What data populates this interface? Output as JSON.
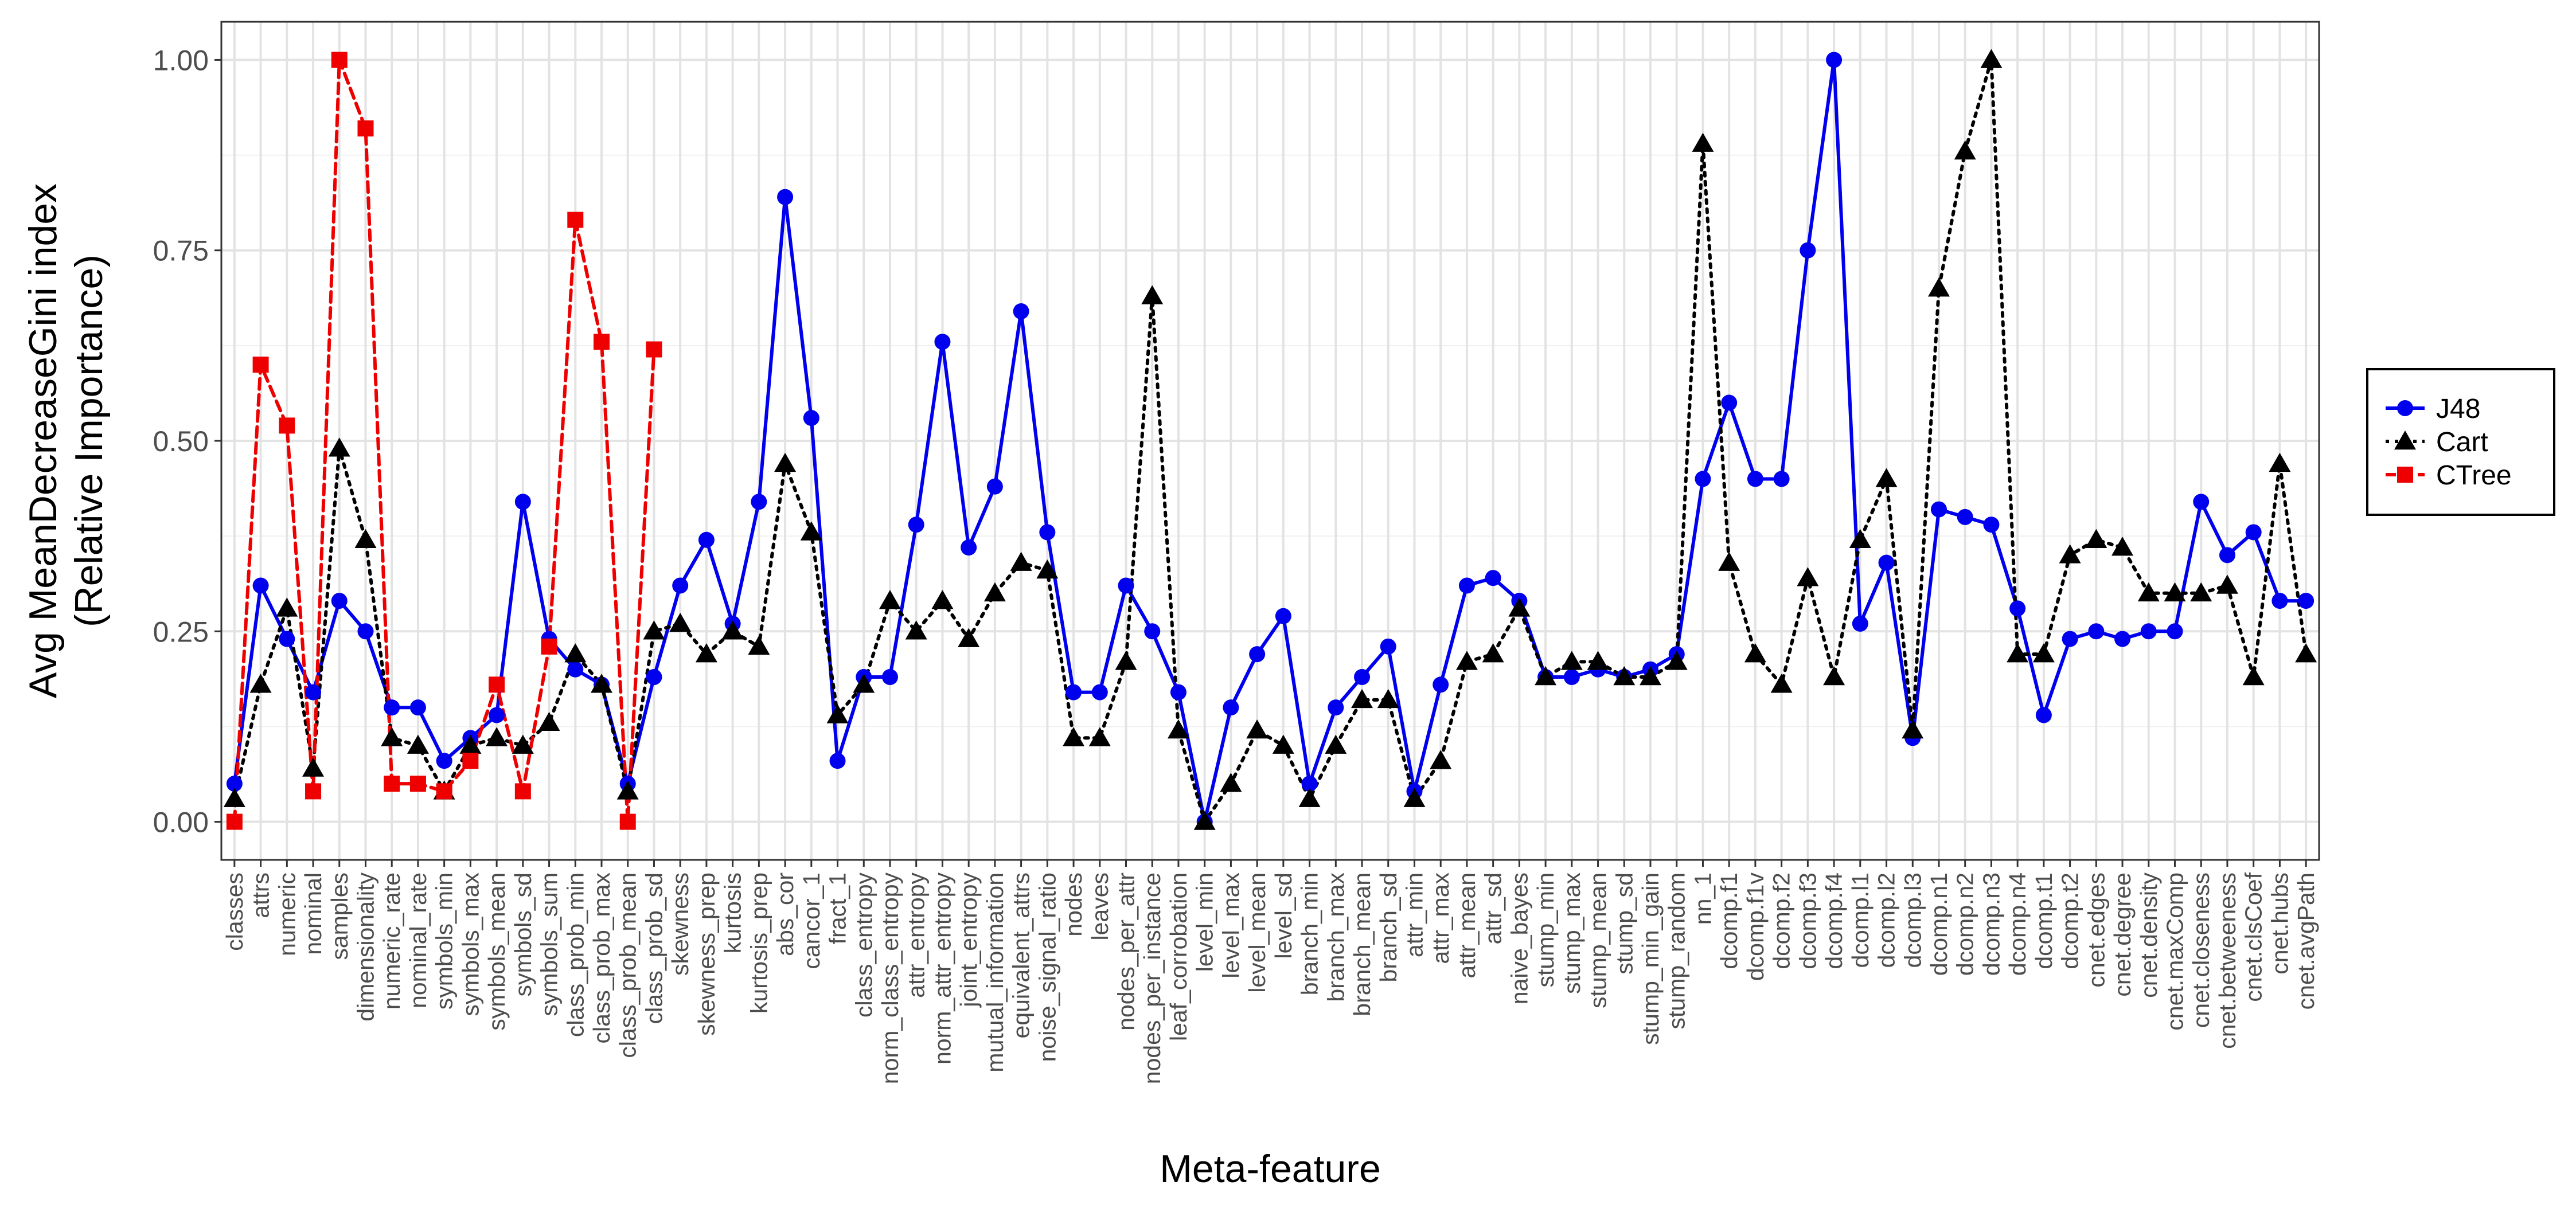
{
  "chart_data": {
    "type": "line",
    "title": "",
    "xlabel": "Meta-feature",
    "ylabel_line1": "Avg MeanDecreaseGini index",
    "ylabel_line2": "(Relative Importance)",
    "ylim": [
      -0.05,
      1.05
    ],
    "yticks": [
      "0.00",
      "0.25",
      "0.50",
      "0.75",
      "1.00"
    ],
    "ytick_values": [
      0,
      0.25,
      0.5,
      0.75,
      1.0
    ],
    "grid": true,
    "legend_position": "right",
    "categories": [
      "classes",
      "attrs",
      "numeric",
      "nominal",
      "samples",
      "dimensionality",
      "numeric_rate",
      "nominal_rate",
      "symbols_min",
      "symbols_max",
      "symbols_mean",
      "symbols_sd",
      "symbols_sum",
      "class_prob_min",
      "class_prob_max",
      "class_prob_mean",
      "class_prob_sd",
      "skewness",
      "skewness_prep",
      "kurtosis",
      "kurtosis_prep",
      "abs_cor",
      "cancor_1",
      "fract_1",
      "class_entropy",
      "norm_class_entropy",
      "attr_entropy",
      "norm_attr_entropy",
      "joint_entropy",
      "mutual_information",
      "equivalent_attrs",
      "noise_signal_ratio",
      "nodes",
      "leaves",
      "nodes_per_attr",
      "nodes_per_instance",
      "leaf_corrobation",
      "level_min",
      "level_max",
      "level_mean",
      "level_sd",
      "branch_min",
      "branch_max",
      "branch_mean",
      "branch_sd",
      "attr_min",
      "attr_max",
      "attr_mean",
      "attr_sd",
      "naive_bayes",
      "stump_min",
      "stump_max",
      "stump_mean",
      "stump_sd",
      "stump_min_gain",
      "stump_random",
      "nn_1",
      "dcomp.f1",
      "dcomp.f1v",
      "dcomp.f2",
      "dcomp.f3",
      "dcomp.f4",
      "dcomp.l1",
      "dcomp.l2",
      "dcomp.l3",
      "dcomp.n1",
      "dcomp.n2",
      "dcomp.n3",
      "dcomp.n4",
      "dcomp.t1",
      "dcomp.t2",
      "cnet.edges",
      "cnet.degree",
      "cnet.density",
      "cnet.maxComp",
      "cnet.closeness",
      "cnet.betweeness",
      "cnet.clsCoef",
      "cnet.hubs",
      "cnet.avgPath"
    ],
    "series": [
      {
        "name": "J48",
        "color": "#0000ee",
        "line": "solid",
        "marker": "circle",
        "values": [
          0.05,
          0.31,
          0.24,
          0.17,
          0.29,
          0.25,
          0.15,
          0.15,
          0.08,
          0.11,
          0.14,
          0.42,
          0.24,
          0.2,
          0.18,
          0.05,
          0.19,
          0.31,
          0.37,
          0.26,
          0.42,
          0.82,
          0.53,
          0.08,
          0.19,
          0.19,
          0.39,
          0.63,
          0.36,
          0.44,
          0.67,
          0.38,
          0.17,
          0.17,
          0.31,
          0.25,
          0.17,
          0.0,
          0.15,
          0.22,
          0.27,
          0.05,
          0.15,
          0.19,
          0.23,
          0.04,
          0.18,
          0.31,
          0.32,
          0.29,
          0.19,
          0.19,
          0.2,
          0.19,
          0.2,
          0.22,
          0.45,
          0.55,
          0.45,
          0.45,
          0.75,
          1.0,
          0.26,
          0.34,
          0.11,
          0.41,
          0.4,
          0.39,
          0.28,
          0.14,
          0.24,
          0.25,
          0.24,
          0.25,
          0.25,
          0.42,
          0.35,
          0.38,
          0.29,
          0.29
        ]
      },
      {
        "name": "Cart",
        "color": "#000000",
        "line": "dotted",
        "marker": "triangle",
        "values": [
          0.03,
          0.18,
          0.28,
          0.07,
          0.49,
          0.37,
          0.11,
          0.1,
          0.04,
          0.1,
          0.11,
          0.1,
          0.13,
          0.22,
          0.18,
          0.04,
          0.25,
          0.26,
          0.22,
          0.25,
          0.23,
          0.47,
          0.38,
          0.14,
          0.18,
          0.29,
          0.25,
          0.29,
          0.24,
          0.3,
          0.34,
          0.33,
          0.11,
          0.11,
          0.21,
          0.69,
          0.12,
          0.0,
          0.05,
          0.12,
          0.1,
          0.03,
          0.1,
          0.16,
          0.16,
          0.03,
          0.08,
          0.21,
          0.22,
          0.28,
          0.19,
          0.21,
          0.21,
          0.19,
          0.19,
          0.21,
          0.89,
          0.34,
          0.22,
          0.18,
          0.32,
          0.19,
          0.37,
          0.45,
          0.12,
          0.7,
          0.88,
          1.0,
          0.22,
          0.22,
          0.35,
          0.37,
          0.36,
          0.3,
          0.3,
          0.3,
          0.31,
          0.19,
          0.47,
          0.22
        ]
      },
      {
        "name": "CTree",
        "color": "#ee0000",
        "line": "dashed",
        "marker": "square",
        "values": [
          0.0,
          0.6,
          0.52,
          0.04,
          1.0,
          0.91,
          0.05,
          0.05,
          0.04,
          0.08,
          0.18,
          0.04,
          0.23,
          0.79,
          0.63,
          0.0,
          0.62,
          null,
          null,
          null,
          null,
          null,
          null,
          null,
          null,
          null,
          null,
          null,
          null,
          null,
          null,
          null,
          null,
          null,
          null,
          null,
          null,
          null,
          null,
          null,
          null,
          null,
          null,
          null,
          null,
          null,
          null,
          null,
          null,
          null,
          null,
          null,
          null,
          null,
          null,
          null,
          null,
          null,
          null,
          null,
          null,
          null,
          null,
          null,
          null,
          null,
          null,
          null,
          null,
          null,
          null,
          null,
          null,
          null,
          null,
          null,
          null,
          null,
          null,
          null
        ]
      }
    ]
  }
}
